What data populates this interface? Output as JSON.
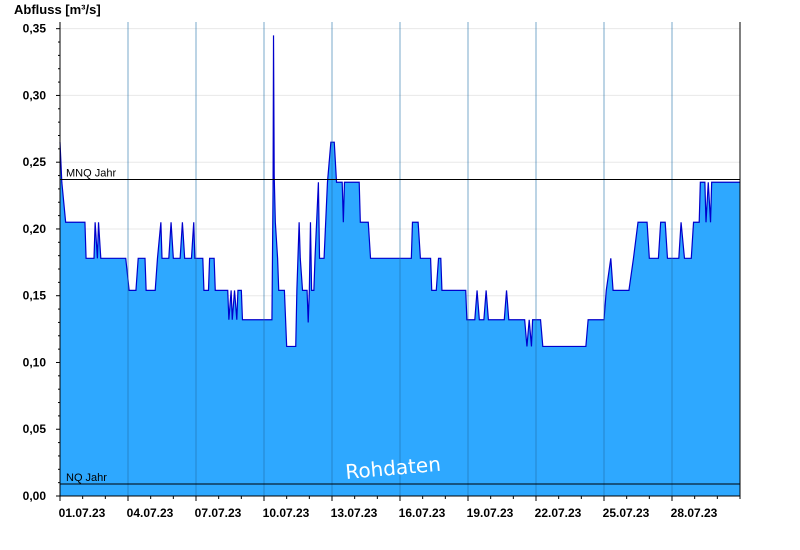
{
  "chart_data": {
    "type": "area",
    "title": "Abfluss [m³/s]",
    "watermark": "Rohdaten",
    "ylim": [
      0,
      0.355
    ],
    "y_ticks": [
      "0,00",
      "0,05",
      "0,10",
      "0,15",
      "0,20",
      "0,25",
      "0,30",
      "0,35"
    ],
    "y_tick_values": [
      0,
      0.05,
      0.1,
      0.15,
      0.2,
      0.25,
      0.3,
      0.35
    ],
    "x_ticks": [
      "01.07.23",
      "04.07.23",
      "07.07.23",
      "10.07.23",
      "13.07.23",
      "16.07.23",
      "19.07.23",
      "22.07.23",
      "25.07.23",
      "28.07.23"
    ],
    "x_tick_days": [
      1,
      4,
      7,
      10,
      13,
      16,
      19,
      22,
      25,
      28
    ],
    "xlim_days": [
      1,
      31
    ],
    "reference_lines": [
      {
        "label": "MNQ Jahr",
        "value": 0.237
      },
      {
        "label": "NQ Jahr",
        "value": 0.009
      }
    ],
    "colors": {
      "fill": "#2ea8ff",
      "line": "#0000cc",
      "ref": "#000000",
      "grid": "#e8e8e8"
    },
    "series": [
      {
        "points": [
          [
            1.0,
            0.265
          ],
          [
            1.08,
            0.235
          ],
          [
            1.25,
            0.205
          ],
          [
            2.1,
            0.205
          ],
          [
            2.15,
            0.178
          ],
          [
            2.5,
            0.178
          ],
          [
            2.55,
            0.205
          ],
          [
            2.65,
            0.178
          ],
          [
            2.7,
            0.205
          ],
          [
            2.8,
            0.178
          ],
          [
            3.9,
            0.178
          ],
          [
            4.05,
            0.154
          ],
          [
            4.35,
            0.154
          ],
          [
            4.45,
            0.178
          ],
          [
            4.75,
            0.178
          ],
          [
            4.8,
            0.154
          ],
          [
            5.2,
            0.154
          ],
          [
            5.3,
            0.178
          ],
          [
            5.45,
            0.205
          ],
          [
            5.5,
            0.178
          ],
          [
            5.8,
            0.178
          ],
          [
            5.9,
            0.205
          ],
          [
            6.0,
            0.178
          ],
          [
            6.3,
            0.178
          ],
          [
            6.4,
            0.205
          ],
          [
            6.5,
            0.178
          ],
          [
            6.8,
            0.178
          ],
          [
            6.9,
            0.205
          ],
          [
            6.95,
            0.178
          ],
          [
            7.3,
            0.178
          ],
          [
            7.35,
            0.154
          ],
          [
            7.55,
            0.154
          ],
          [
            7.6,
            0.178
          ],
          [
            7.8,
            0.178
          ],
          [
            7.85,
            0.154
          ],
          [
            8.4,
            0.154
          ],
          [
            8.45,
            0.132
          ],
          [
            8.55,
            0.154
          ],
          [
            8.6,
            0.132
          ],
          [
            8.7,
            0.154
          ],
          [
            8.8,
            0.132
          ],
          [
            8.85,
            0.154
          ],
          [
            9.0,
            0.154
          ],
          [
            9.05,
            0.132
          ],
          [
            10.35,
            0.132
          ],
          [
            10.4,
            0.23
          ],
          [
            10.42,
            0.345
          ],
          [
            10.45,
            0.24
          ],
          [
            10.5,
            0.205
          ],
          [
            10.6,
            0.178
          ],
          [
            10.65,
            0.154
          ],
          [
            10.9,
            0.154
          ],
          [
            11.0,
            0.112
          ],
          [
            11.4,
            0.112
          ],
          [
            11.45,
            0.154
          ],
          [
            11.55,
            0.205
          ],
          [
            11.6,
            0.178
          ],
          [
            11.7,
            0.154
          ],
          [
            11.9,
            0.154
          ],
          [
            11.95,
            0.13
          ],
          [
            12.0,
            0.154
          ],
          [
            12.05,
            0.205
          ],
          [
            12.1,
            0.154
          ],
          [
            12.2,
            0.154
          ],
          [
            12.25,
            0.178
          ],
          [
            12.4,
            0.235
          ],
          [
            12.45,
            0.178
          ],
          [
            12.65,
            0.178
          ],
          [
            12.8,
            0.235
          ],
          [
            12.95,
            0.265
          ],
          [
            13.1,
            0.265
          ],
          [
            13.2,
            0.235
          ],
          [
            13.45,
            0.235
          ],
          [
            13.5,
            0.205
          ],
          [
            13.55,
            0.235
          ],
          [
            14.2,
            0.235
          ],
          [
            14.25,
            0.205
          ],
          [
            14.6,
            0.205
          ],
          [
            14.7,
            0.178
          ],
          [
            16.5,
            0.178
          ],
          [
            16.55,
            0.205
          ],
          [
            16.8,
            0.205
          ],
          [
            16.9,
            0.178
          ],
          [
            17.35,
            0.178
          ],
          [
            17.4,
            0.154
          ],
          [
            17.6,
            0.154
          ],
          [
            17.7,
            0.178
          ],
          [
            17.8,
            0.178
          ],
          [
            17.85,
            0.154
          ],
          [
            18.9,
            0.154
          ],
          [
            18.95,
            0.132
          ],
          [
            19.3,
            0.132
          ],
          [
            19.4,
            0.154
          ],
          [
            19.5,
            0.132
          ],
          [
            19.7,
            0.132
          ],
          [
            19.8,
            0.154
          ],
          [
            19.9,
            0.132
          ],
          [
            20.6,
            0.132
          ],
          [
            20.7,
            0.154
          ],
          [
            20.8,
            0.132
          ],
          [
            21.5,
            0.132
          ],
          [
            21.6,
            0.112
          ],
          [
            21.7,
            0.132
          ],
          [
            21.8,
            0.112
          ],
          [
            21.85,
            0.132
          ],
          [
            22.2,
            0.132
          ],
          [
            22.3,
            0.112
          ],
          [
            24.2,
            0.112
          ],
          [
            24.3,
            0.132
          ],
          [
            25.0,
            0.132
          ],
          [
            25.1,
            0.154
          ],
          [
            25.3,
            0.178
          ],
          [
            25.4,
            0.154
          ],
          [
            26.1,
            0.154
          ],
          [
            26.3,
            0.178
          ],
          [
            26.5,
            0.205
          ],
          [
            26.9,
            0.205
          ],
          [
            27.0,
            0.178
          ],
          [
            27.4,
            0.178
          ],
          [
            27.5,
            0.205
          ],
          [
            27.7,
            0.205
          ],
          [
            27.8,
            0.178
          ],
          [
            28.3,
            0.178
          ],
          [
            28.4,
            0.205
          ],
          [
            28.55,
            0.178
          ],
          [
            28.85,
            0.178
          ],
          [
            28.95,
            0.205
          ],
          [
            29.2,
            0.205
          ],
          [
            29.25,
            0.235
          ],
          [
            29.45,
            0.235
          ],
          [
            29.5,
            0.205
          ],
          [
            29.6,
            0.235
          ],
          [
            29.7,
            0.205
          ],
          [
            29.75,
            0.235
          ],
          [
            30.05,
            0.235
          ]
        ]
      }
    ]
  }
}
